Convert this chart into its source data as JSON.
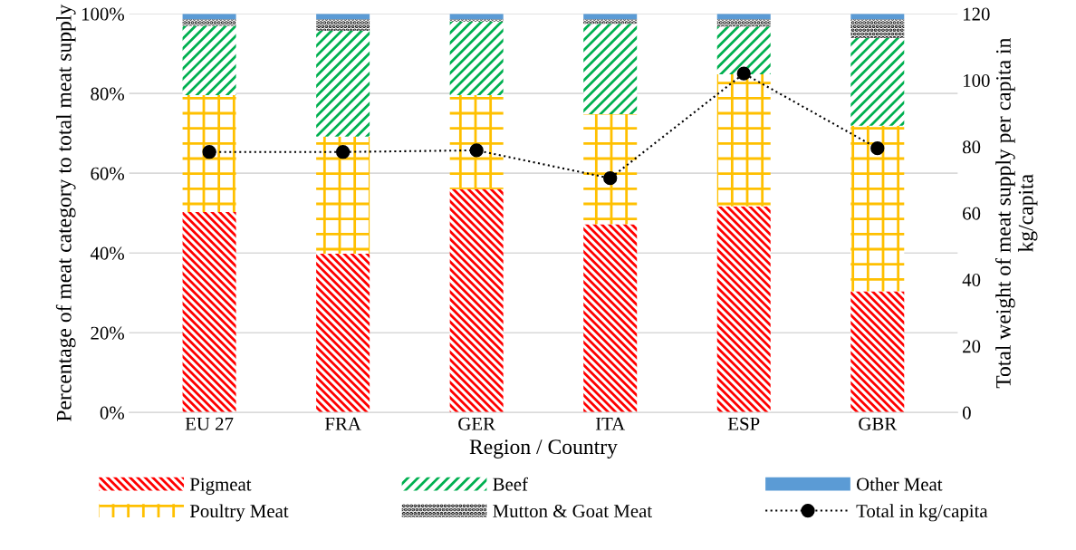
{
  "chart_data": {
    "type": "bar",
    "stacked": true,
    "xlabel": "Region / Country",
    "ylabel": "Percentage of meat category to total meat supply",
    "y2label": "Total weight of meat supply per capita in kg/capita",
    "categories": [
      "EU 27",
      "FRA",
      "GER",
      "ITA",
      "ESP",
      "GBR"
    ],
    "series": [
      {
        "name": "Pigmeat",
        "color": "#ff0000",
        "values": [
          50.3,
          39.8,
          56.0,
          47.2,
          51.7,
          30.4
        ]
      },
      {
        "name": "Poultry Meat",
        "color": "#ffc000",
        "values": [
          29.3,
          29.4,
          23.6,
          27.6,
          33.1,
          41.5
        ]
      },
      {
        "name": "Beef",
        "color": "#00b050",
        "values": [
          17.4,
          26.5,
          18.4,
          22.7,
          12.0,
          22.0
        ]
      },
      {
        "name": "Mutton & Goat Meat",
        "color": "#000000",
        "values": [
          1.6,
          2.9,
          0.6,
          1.1,
          1.8,
          4.7
        ]
      },
      {
        "name": "Other Meat",
        "color": "#5b9bd5",
        "values": [
          1.4,
          1.4,
          1.4,
          1.4,
          1.4,
          1.4
        ]
      },
      {
        "name": "Total in kg/capita",
        "type": "line",
        "axis": "y2",
        "color": "#000000",
        "marker": "circle",
        "line_style": "dotted",
        "values": [
          78.4,
          78.4,
          78.9,
          70.5,
          102.0,
          79.5
        ]
      }
    ],
    "ylim": [
      0,
      100
    ],
    "yticks": [
      {
        "value": 0,
        "label": "0%"
      },
      {
        "value": 20,
        "label": "20%"
      },
      {
        "value": 40,
        "label": "40%"
      },
      {
        "value": 60,
        "label": "60%"
      },
      {
        "value": 80,
        "label": "80%"
      },
      {
        "value": 100,
        "label": "100%"
      }
    ],
    "y2lim": [
      0,
      120
    ],
    "y2ticks": [
      0,
      20,
      40,
      60,
      80,
      100,
      120
    ],
    "grid": "y",
    "legend": "bottom"
  }
}
